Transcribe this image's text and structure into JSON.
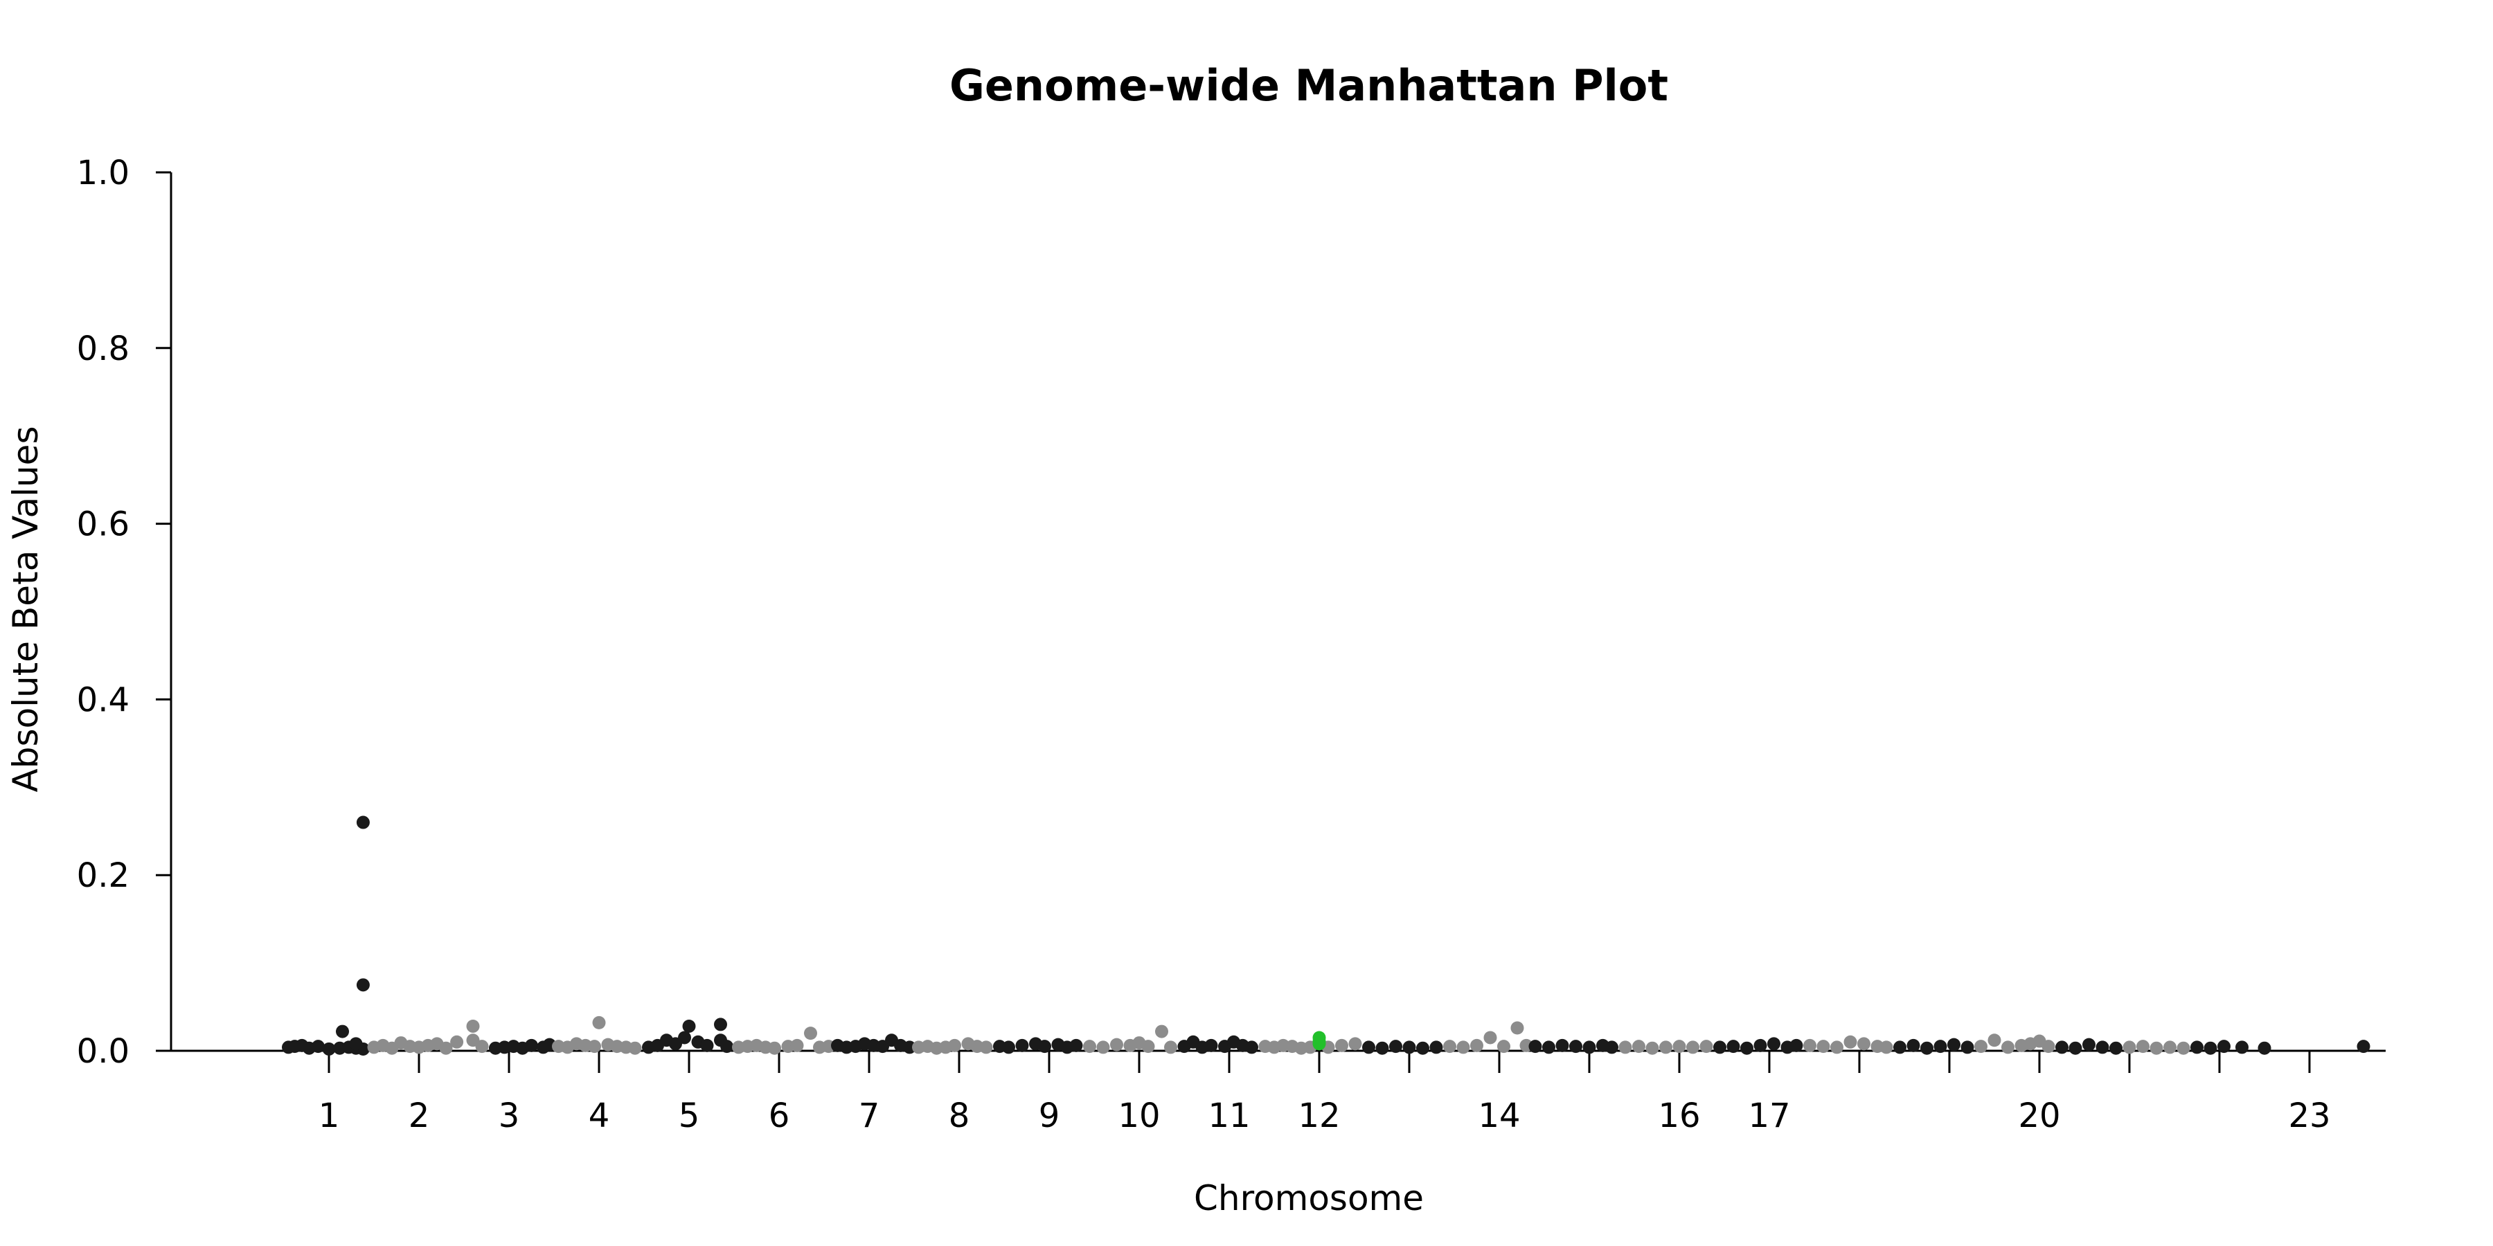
{
  "chart_data": {
    "type": "scatter",
    "title": "Genome-wide Manhattan Plot",
    "xlabel": "Chromosome",
    "ylabel": "Absolute Beta Values",
    "ylim": [
      0,
      1
    ],
    "y_ticks": [
      "0.0",
      "0.2",
      "0.4",
      "0.6",
      "0.8",
      "1.0"
    ],
    "x_ticks": [
      {
        "label": "1",
        "pos": 1
      },
      {
        "label": "2",
        "pos": 2
      },
      {
        "label": "3",
        "pos": 3
      },
      {
        "label": "4",
        "pos": 4
      },
      {
        "label": "5",
        "pos": 5
      },
      {
        "label": "6",
        "pos": 6
      },
      {
        "label": "7",
        "pos": 7
      },
      {
        "label": "8",
        "pos": 8
      },
      {
        "label": "9",
        "pos": 9
      },
      {
        "label": "10",
        "pos": 10
      },
      {
        "label": "11",
        "pos": 11
      },
      {
        "label": "12",
        "pos": 12
      },
      {
        "label": "",
        "pos": 13
      },
      {
        "label": "14",
        "pos": 14
      },
      {
        "label": "",
        "pos": 15
      },
      {
        "label": "16",
        "pos": 16
      },
      {
        "label": "17",
        "pos": 17
      },
      {
        "label": "",
        "pos": 18
      },
      {
        "label": "",
        "pos": 19
      },
      {
        "label": "20",
        "pos": 20
      },
      {
        "label": "",
        "pos": 21
      },
      {
        "label": "",
        "pos": 22
      },
      {
        "label": "23",
        "pos": 23
      }
    ],
    "grid": false,
    "legend": "none",
    "colors": {
      "odd_chromosomes": "#1a1a1a",
      "even_chromosomes": "#8c8c8c",
      "highlight": "#22c02a"
    },
    "highlight": {
      "chromosome": 12,
      "values": [
        0.015,
        0.011,
        0.008
      ]
    },
    "series": [
      {
        "chromosome": 1,
        "color": "#1a1a1a",
        "points": [
          [
            0.55,
            0.004
          ],
          [
            0.62,
            0.005
          ],
          [
            0.7,
            0.006
          ],
          [
            0.78,
            0.003
          ],
          [
            0.88,
            0.005
          ],
          [
            1.0,
            0.002
          ],
          [
            1.12,
            0.003
          ],
          [
            1.22,
            0.004
          ],
          [
            1.3,
            0.003
          ],
          [
            1.38,
            0.002
          ],
          [
            1.15,
            0.022
          ],
          [
            1.3,
            0.008
          ],
          [
            1.38,
            0.26
          ],
          [
            1.38,
            0.075
          ]
        ]
      },
      {
        "chromosome": 2,
        "color": "#8c8c8c",
        "points": [
          [
            1.5,
            0.004
          ],
          [
            1.6,
            0.006
          ],
          [
            1.7,
            0.003
          ],
          [
            1.8,
            0.009
          ],
          [
            1.9,
            0.005
          ],
          [
            2.0,
            0.004
          ],
          [
            2.1,
            0.006
          ],
          [
            2.2,
            0.008
          ],
          [
            2.3,
            0.003
          ],
          [
            2.42,
            0.01
          ],
          [
            2.6,
            0.012
          ],
          [
            2.6,
            0.028
          ],
          [
            2.7,
            0.005
          ]
        ]
      },
      {
        "chromosome": 3,
        "color": "#1a1a1a",
        "points": [
          [
            2.85,
            0.003
          ],
          [
            2.95,
            0.004
          ],
          [
            3.05,
            0.005
          ],
          [
            3.15,
            0.003
          ],
          [
            3.25,
            0.006
          ],
          [
            3.38,
            0.004
          ],
          [
            3.45,
            0.007
          ]
        ]
      },
      {
        "chromosome": 4,
        "color": "#8c8c8c",
        "points": [
          [
            3.55,
            0.005
          ],
          [
            3.65,
            0.004
          ],
          [
            3.75,
            0.008
          ],
          [
            3.85,
            0.006
          ],
          [
            3.95,
            0.005
          ],
          [
            4.0,
            0.032
          ],
          [
            4.1,
            0.007
          ],
          [
            4.2,
            0.005
          ],
          [
            4.3,
            0.004
          ],
          [
            4.4,
            0.003
          ]
        ]
      },
      {
        "chromosome": 5,
        "color": "#1a1a1a",
        "points": [
          [
            4.55,
            0.004
          ],
          [
            4.65,
            0.006
          ],
          [
            4.75,
            0.012
          ],
          [
            4.85,
            0.008
          ],
          [
            4.95,
            0.015
          ],
          [
            5.0,
            0.028
          ],
          [
            5.1,
            0.01
          ],
          [
            5.2,
            0.006
          ],
          [
            5.35,
            0.03
          ],
          [
            5.35,
            0.012
          ],
          [
            5.42,
            0.005
          ]
        ]
      },
      {
        "chromosome": 6,
        "color": "#8c8c8c",
        "points": [
          [
            5.55,
            0.004
          ],
          [
            5.65,
            0.005
          ],
          [
            5.75,
            0.006
          ],
          [
            5.85,
            0.004
          ],
          [
            5.95,
            0.003
          ],
          [
            6.1,
            0.005
          ],
          [
            6.2,
            0.006
          ],
          [
            6.35,
            0.02
          ],
          [
            6.45,
            0.004
          ],
          [
            6.55,
            0.005
          ]
        ]
      },
      {
        "chromosome": 7,
        "color": "#1a1a1a",
        "points": [
          [
            6.65,
            0.006
          ],
          [
            6.75,
            0.004
          ],
          [
            6.85,
            0.005
          ],
          [
            6.95,
            0.008
          ],
          [
            7.05,
            0.006
          ],
          [
            7.15,
            0.005
          ],
          [
            7.25,
            0.012
          ],
          [
            7.35,
            0.006
          ],
          [
            7.45,
            0.004
          ]
        ]
      },
      {
        "chromosome": 8,
        "color": "#8c8c8c",
        "points": [
          [
            7.55,
            0.004
          ],
          [
            7.65,
            0.005
          ],
          [
            7.75,
            0.003
          ],
          [
            7.85,
            0.004
          ],
          [
            7.95,
            0.006
          ],
          [
            8.1,
            0.008
          ],
          [
            8.2,
            0.005
          ],
          [
            8.3,
            0.004
          ]
        ]
      },
      {
        "chromosome": 9,
        "color": "#1a1a1a",
        "points": [
          [
            8.45,
            0.005
          ],
          [
            8.55,
            0.004
          ],
          [
            8.7,
            0.006
          ],
          [
            8.85,
            0.008
          ],
          [
            8.95,
            0.005
          ],
          [
            9.1,
            0.007
          ],
          [
            9.2,
            0.004
          ],
          [
            9.3,
            0.006
          ]
        ]
      },
      {
        "chromosome": 10,
        "color": "#8c8c8c",
        "points": [
          [
            9.45,
            0.005
          ],
          [
            9.6,
            0.004
          ],
          [
            9.75,
            0.007
          ],
          [
            9.9,
            0.006
          ],
          [
            10.0,
            0.009
          ],
          [
            10.1,
            0.005
          ],
          [
            10.25,
            0.022
          ],
          [
            10.35,
            0.004
          ]
        ]
      },
      {
        "chromosome": 11,
        "color": "#1a1a1a",
        "points": [
          [
            10.5,
            0.005
          ],
          [
            10.6,
            0.01
          ],
          [
            10.7,
            0.004
          ],
          [
            10.8,
            0.006
          ],
          [
            10.95,
            0.005
          ],
          [
            11.05,
            0.01
          ],
          [
            11.15,
            0.006
          ],
          [
            11.25,
            0.004
          ]
        ]
      },
      {
        "chromosome": 12,
        "color": "#8c8c8c",
        "points": [
          [
            11.4,
            0.005
          ],
          [
            11.5,
            0.004
          ],
          [
            11.6,
            0.006
          ],
          [
            11.7,
            0.005
          ],
          [
            11.8,
            0.003
          ],
          [
            11.9,
            0.004
          ],
          [
            12.1,
            0.004
          ],
          [
            12.25,
            0.006
          ],
          [
            12.4,
            0.008
          ]
        ]
      },
      {
        "chromosome": 13,
        "color": "#1a1a1a",
        "points": [
          [
            12.55,
            0.004
          ],
          [
            12.7,
            0.003
          ],
          [
            12.85,
            0.005
          ],
          [
            13.0,
            0.004
          ],
          [
            13.15,
            0.003
          ],
          [
            13.3,
            0.004
          ]
        ]
      },
      {
        "chromosome": 14,
        "color": "#8c8c8c",
        "points": [
          [
            13.45,
            0.005
          ],
          [
            13.6,
            0.004
          ],
          [
            13.75,
            0.006
          ],
          [
            13.9,
            0.015
          ],
          [
            14.05,
            0.005
          ],
          [
            14.2,
            0.026
          ],
          [
            14.3,
            0.006
          ]
        ]
      },
      {
        "chromosome": 15,
        "color": "#1a1a1a",
        "points": [
          [
            14.4,
            0.005
          ],
          [
            14.55,
            0.004
          ],
          [
            14.7,
            0.006
          ],
          [
            14.85,
            0.005
          ],
          [
            15.0,
            0.004
          ],
          [
            15.15,
            0.006
          ],
          [
            15.25,
            0.004
          ]
        ]
      },
      {
        "chromosome": 16,
        "color": "#8c8c8c",
        "points": [
          [
            15.4,
            0.004
          ],
          [
            15.55,
            0.005
          ],
          [
            15.7,
            0.003
          ],
          [
            15.85,
            0.004
          ],
          [
            16.0,
            0.005
          ],
          [
            16.15,
            0.004
          ],
          [
            16.3,
            0.005
          ]
        ]
      },
      {
        "chromosome": 17,
        "color": "#1a1a1a",
        "points": [
          [
            16.45,
            0.004
          ],
          [
            16.6,
            0.005
          ],
          [
            16.75,
            0.003
          ],
          [
            16.9,
            0.006
          ],
          [
            17.05,
            0.008
          ],
          [
            17.2,
            0.004
          ],
          [
            17.3,
            0.006
          ]
        ]
      },
      {
        "chromosome": 18,
        "color": "#8c8c8c",
        "points": [
          [
            17.45,
            0.006
          ],
          [
            17.6,
            0.005
          ],
          [
            17.75,
            0.004
          ],
          [
            17.9,
            0.01
          ],
          [
            18.05,
            0.008
          ],
          [
            18.2,
            0.005
          ],
          [
            18.3,
            0.004
          ]
        ]
      },
      {
        "chromosome": 19,
        "color": "#1a1a1a",
        "points": [
          [
            18.45,
            0.004
          ],
          [
            18.6,
            0.006
          ],
          [
            18.75,
            0.003
          ],
          [
            18.9,
            0.005
          ],
          [
            19.05,
            0.007
          ],
          [
            19.2,
            0.004
          ]
        ]
      },
      {
        "chromosome": 20,
        "color": "#8c8c8c",
        "points": [
          [
            19.35,
            0.005
          ],
          [
            19.5,
            0.012
          ],
          [
            19.65,
            0.004
          ],
          [
            19.8,
            0.006
          ],
          [
            19.9,
            0.008
          ],
          [
            20.0,
            0.011
          ],
          [
            20.1,
            0.005
          ]
        ]
      },
      {
        "chromosome": 21,
        "color": "#1a1a1a",
        "points": [
          [
            20.25,
            0.004
          ],
          [
            20.4,
            0.003
          ],
          [
            20.55,
            0.007
          ],
          [
            20.7,
            0.004
          ],
          [
            20.85,
            0.003
          ]
        ]
      },
      {
        "chromosome": 22,
        "color": "#8c8c8c",
        "points": [
          [
            21.0,
            0.004
          ],
          [
            21.15,
            0.005
          ],
          [
            21.3,
            0.003
          ],
          [
            21.45,
            0.004
          ],
          [
            21.6,
            0.003
          ]
        ]
      },
      {
        "chromosome": 23,
        "color": "#1a1a1a",
        "points": [
          [
            21.75,
            0.004
          ],
          [
            21.9,
            0.003
          ],
          [
            22.05,
            0.005
          ],
          [
            22.25,
            0.004
          ],
          [
            22.5,
            0.003
          ],
          [
            23.6,
            0.005
          ]
        ]
      }
    ]
  }
}
